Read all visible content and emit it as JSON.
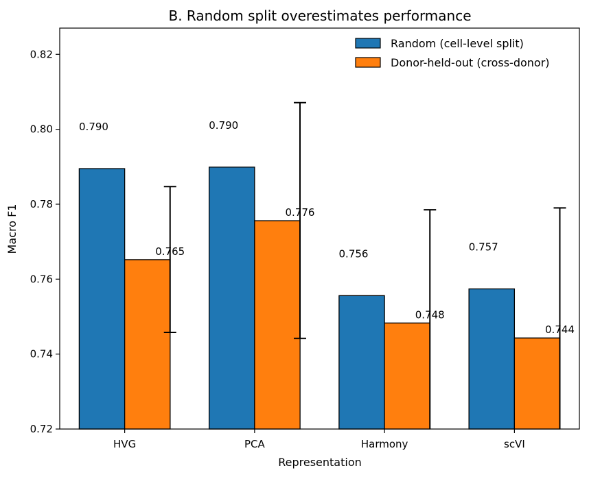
{
  "chart_data": {
    "type": "bar",
    "title": "B. Random split overestimates performance",
    "xlabel": "Representation",
    "ylabel": "Macro F1",
    "categories": [
      "HVG",
      "PCA",
      "Harmony",
      "scVI"
    ],
    "ylim": [
      0.72,
      0.827
    ],
    "yticks": [
      "0.72",
      "0.74",
      "0.76",
      "0.78",
      "0.80",
      "0.82"
    ],
    "grid": false,
    "legend_position": "top-right",
    "series": [
      {
        "name": "Random (cell-level split)",
        "color": "#1f77b4",
        "values": [
          0.7895,
          0.7899,
          0.7556,
          0.7574
        ],
        "labels": [
          "0.790",
          "0.790",
          "0.756",
          "0.757"
        ]
      },
      {
        "name": "Donor-held-out (cross-donor)",
        "color": "#ff7f0e",
        "values": [
          0.7652,
          0.7756,
          0.7483,
          0.7443
        ],
        "labels": [
          "0.765",
          "0.776",
          "0.748",
          "0.744"
        ],
        "error": [
          [
            0.7458,
            0.7847
          ],
          [
            0.7442,
            0.8071
          ],
          [
            0.7175,
            0.7785
          ],
          [
            0.7198,
            0.779
          ]
        ]
      }
    ]
  }
}
